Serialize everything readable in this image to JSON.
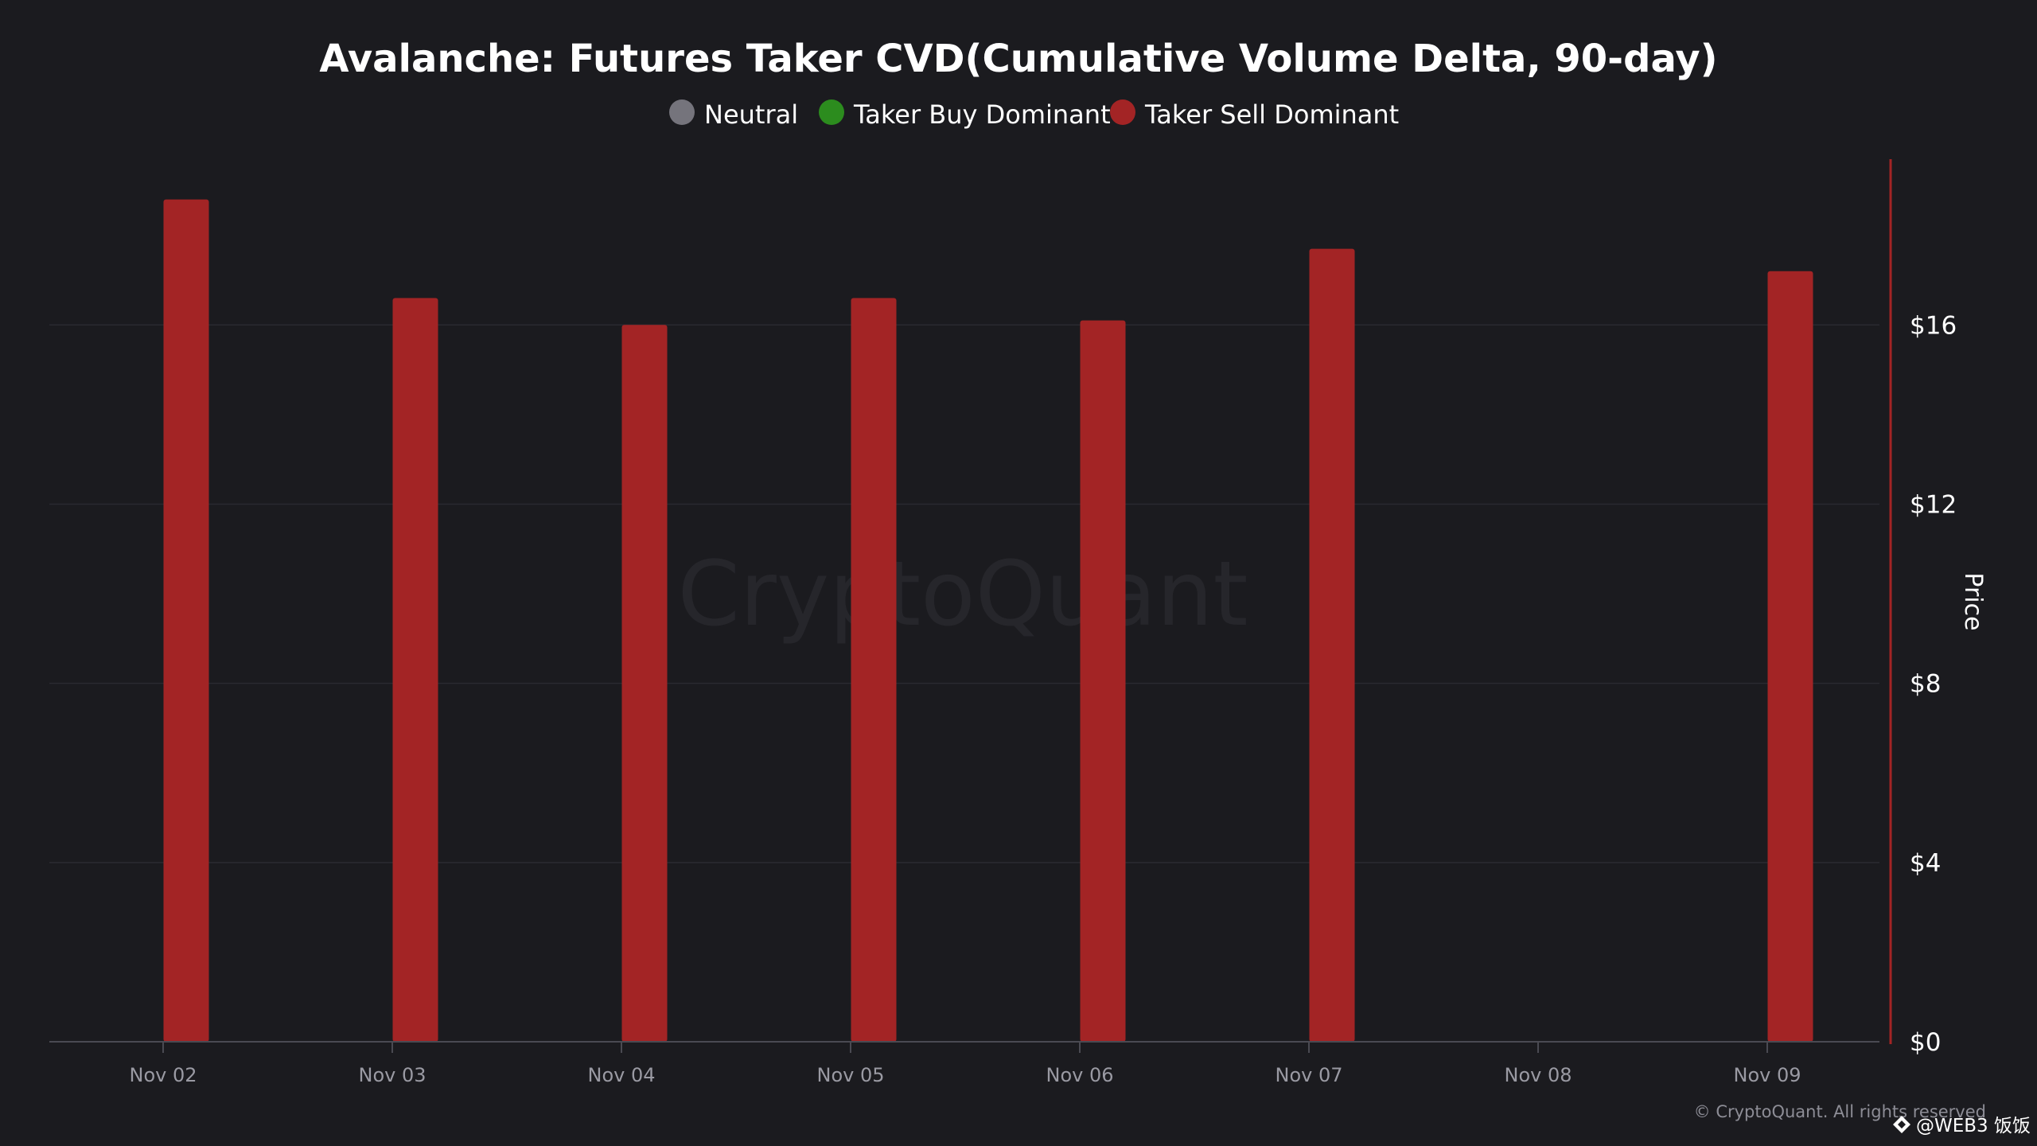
{
  "chart_data": {
    "type": "bar",
    "title": "Avalanche: Futures Taker CVD(Cumulative Volume Delta, 90-day)",
    "legend": {
      "placement": "top-center",
      "items": [
        {
          "label": "Neutral",
          "color": "#75747c"
        },
        {
          "label": "Taker Buy Dominant",
          "color": "#2c8c1e"
        },
        {
          "label": "Taker Sell Dominant",
          "color": "#a32425"
        }
      ]
    },
    "categories": [
      "Nov 02",
      "Nov 03",
      "Nov 04",
      "Nov 05",
      "Nov 06",
      "Nov 07",
      "Nov 08",
      "Nov 09"
    ],
    "series": [
      {
        "name": "Taker Sell Dominant",
        "color": "#a32425",
        "values": [
          18.8,
          16.6,
          16.0,
          16.6,
          16.1,
          17.7,
          null,
          17.2
        ]
      }
    ],
    "y_axis": {
      "label": "Price",
      "position": "right",
      "ylim": [
        0,
        19.7
      ],
      "ticks": [
        0,
        4,
        8,
        12,
        16
      ],
      "tick_labels": [
        "$0",
        "$4",
        "$8",
        "$12",
        "$16"
      ]
    },
    "grid": true
  },
  "watermark": "CryptoQuant",
  "footer": {
    "copyright": "© CryptoQuant. All rights reserved",
    "credit": "@WEB3 饭饭"
  },
  "colors": {
    "background": "#1b1b1f",
    "axis_line": "#a32425",
    "grid": "#2a2a30"
  }
}
